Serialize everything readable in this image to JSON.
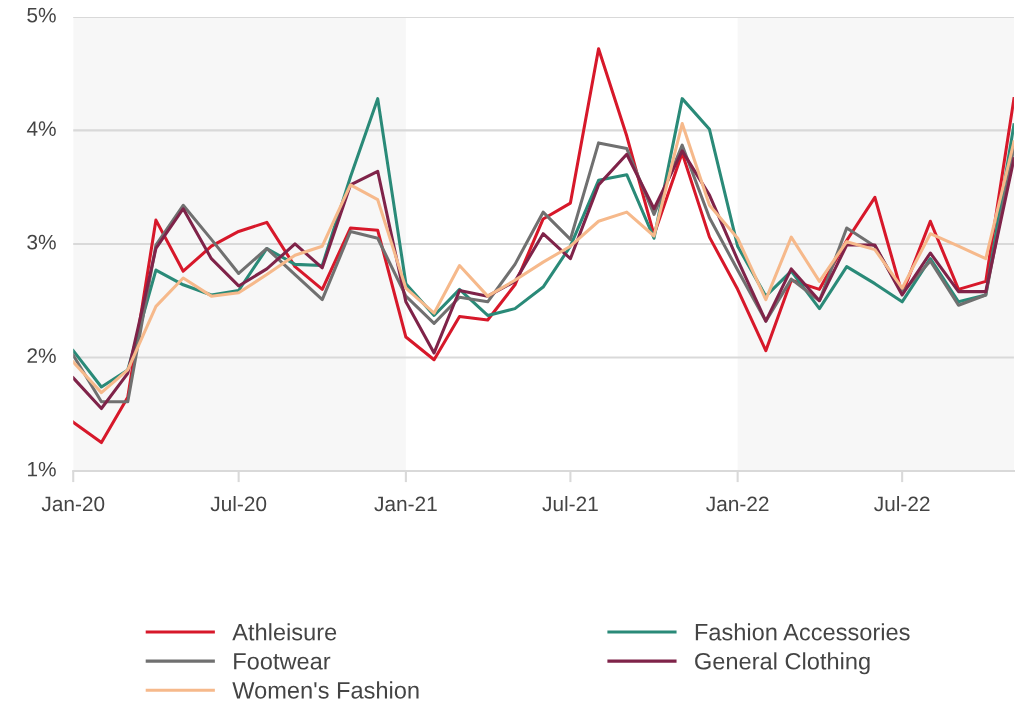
{
  "chart_data": {
    "type": "line",
    "x": [
      "2020-01",
      "2020-02",
      "2020-03",
      "2020-04",
      "2020-05",
      "2020-06",
      "2020-07",
      "2020-08",
      "2020-09",
      "2020-10",
      "2020-11",
      "2020-12",
      "2021-01",
      "2021-02",
      "2021-03",
      "2021-04",
      "2021-05",
      "2021-06",
      "2021-07",
      "2021-08",
      "2021-09",
      "2021-10",
      "2021-11",
      "2021-12",
      "2022-01",
      "2022-02",
      "2022-03",
      "2022-04",
      "2022-05",
      "2022-06",
      "2022-07",
      "2022-08",
      "2022-09",
      "2022-10",
      "2022-11"
    ],
    "series": [
      {
        "name": "Athleisure",
        "color": "#d7182a",
        "values": [
          1.43,
          1.25,
          1.65,
          3.21,
          2.76,
          2.98,
          3.11,
          3.19,
          2.8,
          2.6,
          3.14,
          3.12,
          2.18,
          1.98,
          2.36,
          2.33,
          2.64,
          3.22,
          3.36,
          4.72,
          3.95,
          3.08,
          3.8,
          3.06,
          2.6,
          2.06,
          2.68,
          2.6,
          3.03,
          3.41,
          2.56,
          3.2,
          2.6,
          2.67,
          4.28
        ]
      },
      {
        "name": "Fashion Accessories",
        "color": "#2a8a78",
        "values": [
          2.06,
          1.74,
          1.89,
          2.77,
          2.64,
          2.55,
          2.59,
          2.96,
          2.82,
          2.81,
          3.59,
          4.28,
          2.65,
          2.37,
          2.6,
          2.37,
          2.43,
          2.62,
          2.98,
          3.56,
          3.61,
          3.05,
          4.28,
          4.01,
          2.98,
          2.54,
          2.76,
          2.43,
          2.8,
          2.65,
          2.49,
          2.87,
          2.49,
          2.55,
          4.05
        ]
      },
      {
        "name": "Footwear",
        "color": "#707070",
        "values": [
          2.02,
          1.61,
          1.61,
          2.99,
          3.34,
          3.04,
          2.74,
          2.96,
          2.73,
          2.51,
          3.11,
          3.05,
          2.54,
          2.3,
          2.53,
          2.49,
          2.82,
          3.28,
          3.04,
          3.89,
          3.84,
          3.26,
          3.87,
          3.23,
          2.77,
          2.32,
          2.69,
          2.5,
          3.14,
          2.98,
          2.57,
          2.85,
          2.46,
          2.55,
          3.85
        ]
      },
      {
        "name": "General Clothing",
        "color": "#7f2349",
        "values": [
          1.82,
          1.55,
          1.86,
          2.96,
          3.31,
          2.87,
          2.63,
          2.78,
          3.0,
          2.79,
          3.52,
          3.64,
          2.49,
          2.04,
          2.59,
          2.54,
          2.67,
          3.09,
          2.87,
          3.52,
          3.79,
          3.31,
          3.82,
          3.43,
          2.86,
          2.32,
          2.78,
          2.5,
          2.99,
          2.99,
          2.55,
          2.92,
          2.58,
          2.58,
          3.75
        ]
      },
      {
        "name": "Women's Fashion",
        "color": "#f6b98b",
        "values": [
          1.96,
          1.69,
          1.89,
          2.45,
          2.7,
          2.54,
          2.57,
          2.73,
          2.9,
          2.98,
          3.52,
          3.39,
          2.61,
          2.39,
          2.81,
          2.54,
          2.68,
          2.84,
          2.98,
          3.2,
          3.28,
          3.07,
          4.06,
          3.34,
          3.05,
          2.51,
          3.06,
          2.67,
          3.02,
          2.95,
          2.61,
          3.09,
          2.98,
          2.87,
          3.9
        ]
      }
    ],
    "xlim": [
      "2020-01",
      "2022-11"
    ],
    "xticks": [
      {
        "value": "2020-01",
        "label": "Jan-20"
      },
      {
        "value": "2020-07",
        "label": "Jul-20"
      },
      {
        "value": "2021-01",
        "label": "Jan-21"
      },
      {
        "value": "2021-07",
        "label": "Jul-21"
      },
      {
        "value": "2022-01",
        "label": "Jan-22"
      },
      {
        "value": "2022-07",
        "label": "Jul-22"
      }
    ],
    "ylim": [
      1,
      5
    ],
    "yticks": [
      {
        "value": 1,
        "label": "1%"
      },
      {
        "value": 2,
        "label": "2%"
      },
      {
        "value": 3,
        "label": "3%"
      },
      {
        "value": 4,
        "label": "4%"
      },
      {
        "value": 5,
        "label": "5%"
      }
    ],
    "bands": [
      {
        "axis": "x",
        "from": "2020-01",
        "to": "2021-01",
        "color": "#f7f7f7"
      },
      {
        "axis": "x",
        "from": "2022-01",
        "to": "2022-11",
        "color": "#f7f7f7"
      }
    ],
    "grid": "y",
    "legend": "bottom",
    "line_style": "solid",
    "marker": "none"
  }
}
